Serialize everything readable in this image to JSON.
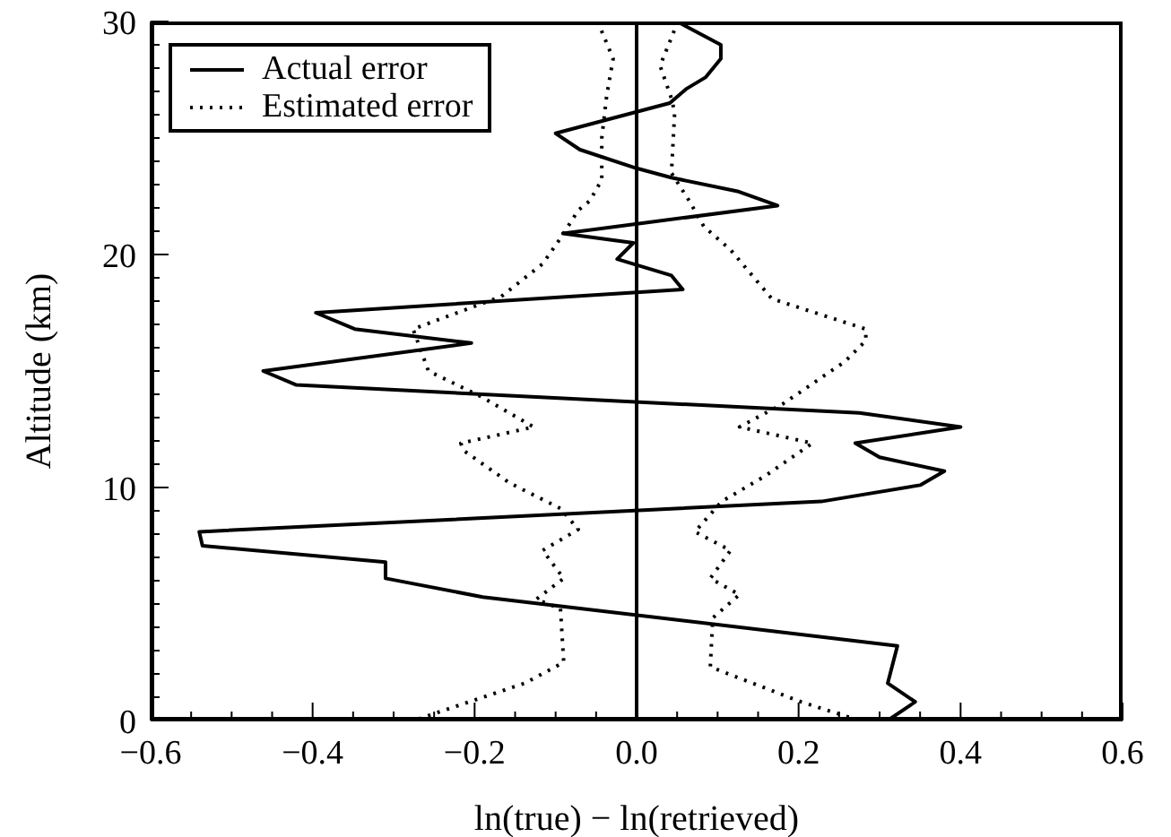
{
  "chart_data": {
    "type": "line",
    "xlabel": "ln(true) − ln(retrieved)",
    "ylabel": "Altitude (km)",
    "xlim": [
      -0.6,
      0.6
    ],
    "xticks": [
      {
        "value": -0.6,
        "label": "−0.6"
      },
      {
        "value": -0.55,
        "label": null
      },
      {
        "value": -0.5,
        "label": null
      },
      {
        "value": -0.45,
        "label": null
      },
      {
        "value": -0.4,
        "label": "−0.4"
      },
      {
        "value": -0.35,
        "label": null
      },
      {
        "value": -0.3,
        "label": null
      },
      {
        "value": -0.25,
        "label": null
      },
      {
        "value": -0.2,
        "label": "−0.2"
      },
      {
        "value": -0.15,
        "label": null
      },
      {
        "value": -0.1,
        "label": null
      },
      {
        "value": -0.05,
        "label": null
      },
      {
        "value": 0,
        "label": "0.0"
      },
      {
        "value": 0.05,
        "label": null
      },
      {
        "value": 0.1,
        "label": null
      },
      {
        "value": 0.15,
        "label": null
      },
      {
        "value": 0.2,
        "label": "0.2"
      },
      {
        "value": 0.25,
        "label": null
      },
      {
        "value": 0.3,
        "label": null
      },
      {
        "value": 0.35,
        "label": null
      },
      {
        "value": 0.4,
        "label": "0.4"
      },
      {
        "value": 0.45,
        "label": null
      },
      {
        "value": 0.5,
        "label": null
      },
      {
        "value": 0.55,
        "label": null
      },
      {
        "value": 0.6,
        "label": "0.6"
      }
    ],
    "ylim": [
      0,
      30
    ],
    "yticks": [
      0,
      {
        "value": 1,
        "label": null
      },
      {
        "value": 2,
        "label": null
      },
      {
        "value": 3,
        "label": null
      },
      {
        "value": 4,
        "label": null
      },
      {
        "value": 5,
        "label": null
      },
      {
        "value": 6,
        "label": null
      },
      {
        "value": 7,
        "label": null
      },
      {
        "value": 8,
        "label": null
      },
      {
        "value": 9,
        "label": null
      },
      10,
      {
        "value": 11,
        "label": null
      },
      {
        "value": 12,
        "label": null
      },
      {
        "value": 13,
        "label": null
      },
      {
        "value": 14,
        "label": null
      },
      {
        "value": 15,
        "label": null
      },
      {
        "value": 16,
        "label": null
      },
      {
        "value": 17,
        "label": null
      },
      {
        "value": 18,
        "label": null
      },
      {
        "value": 19,
        "label": null
      },
      20,
      {
        "value": 21,
        "label": null
      },
      {
        "value": 22,
        "label": null
      },
      {
        "value": 23,
        "label": null
      },
      {
        "value": 24,
        "label": null
      },
      {
        "value": 25,
        "label": null
      },
      {
        "value": 26,
        "label": null
      },
      {
        "value": 27,
        "label": null
      },
      {
        "value": 28,
        "label": null
      },
      {
        "value": 29,
        "label": null
      },
      30
    ],
    "grid": false,
    "legend": "top left",
    "marker": "none",
    "ref_lines": [
      {
        "axis": "x",
        "value": 0,
        "color": "#000000",
        "line_style": "solid"
      }
    ],
    "series": [
      {
        "name": "Actual error",
        "color": "#000000",
        "line_style": "solid",
        "x": [
          0.05,
          0.104,
          0.104,
          0.085,
          0.061,
          0.041,
          -0.1,
          -0.07,
          0,
          0.043,
          0.126,
          0.174,
          -0.091,
          -0.004,
          -0.024,
          0.043,
          0.057,
          -0.396,
          -0.348,
          -0.204,
          -0.461,
          -0.42,
          0.275,
          0.4,
          0.27,
          0.3,
          0.38,
          0.35,
          0.228,
          -0.54,
          -0.536,
          -0.31,
          -0.31,
          -0.19,
          0.322,
          0.31,
          0.344,
          0.31
        ],
        "values": [
          30,
          29,
          28.4,
          27.6,
          27.1,
          26.5,
          25.2,
          24.5,
          23.7,
          23.3,
          22.7,
          22.1,
          20.9,
          20.5,
          19.8,
          19.1,
          18.5,
          17.5,
          16.8,
          16.2,
          15,
          14.4,
          13.2,
          12.6,
          11.9,
          11.3,
          10.7,
          10.1,
          9.4,
          8.1,
          7.5,
          6.8,
          6.1,
          5.3,
          3.2,
          1.6,
          0.8,
          0
        ]
      },
      {
        "name": "Estimated error",
        "color": "#000000",
        "line_style": "dotted",
        "x": [
          -0.048,
          -0.029,
          -0.037,
          -0.043,
          -0.043,
          -0.058,
          -0.072,
          -0.094,
          -0.116,
          -0.167,
          -0.276,
          -0.257,
          -0.192,
          -0.127,
          -0.217,
          -0.214,
          -0.157,
          -0.094,
          -0.072,
          -0.116,
          -0.09,
          -0.124,
          -0.094,
          -0.09,
          -0.138,
          -0.275
        ],
        "values": [
          30,
          28.4,
          26.8,
          25,
          23.2,
          22.3,
          21.9,
          20.7,
          19.6,
          18.2,
          16.8,
          15,
          13.9,
          12.6,
          11.9,
          11.6,
          10.2,
          9.1,
          8.2,
          7.3,
          6.1,
          5.2,
          4.8,
          2.5,
          1.6,
          0
        ]
      },
      {
        "color": "#000000",
        "line_style": "dotted",
        "x": [
          0.051,
          0.029,
          0.043,
          0.047,
          0.043,
          0.065,
          0.083,
          0.116,
          0.167,
          0.283,
          0.283,
          0.257,
          0.181,
          0.127,
          0.217,
          0.159,
          0.105,
          0.072,
          0.116,
          0.091,
          0.127,
          0.094,
          0.091,
          0.203,
          0.275
        ],
        "values": [
          30,
          28.1,
          26.7,
          26.1,
          23.5,
          22.3,
          21.2,
          20.2,
          18.1,
          16.8,
          16.3,
          15.4,
          13.6,
          12.6,
          11.9,
          10.5,
          9.4,
          8.1,
          7.3,
          6.1,
          5.4,
          4.4,
          2.3,
          0.8,
          0
        ]
      }
    ]
  }
}
